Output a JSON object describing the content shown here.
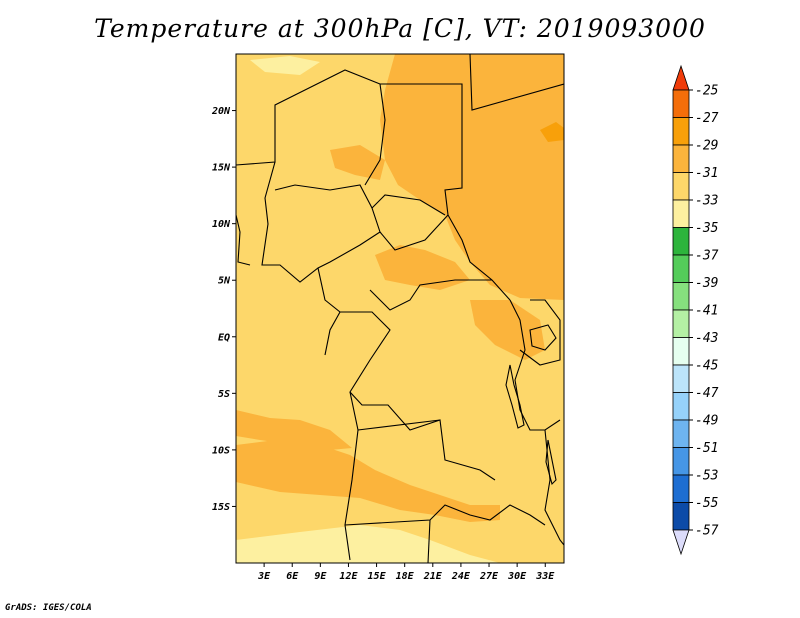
{
  "title": "Temperature at 300hPa [C], VT: 2019093000",
  "footer": "GrADS: IGES/COLA",
  "map": {
    "lon_range": [
      0,
      35
    ],
    "lat_range": [
      -20,
      25
    ],
    "lat_ticks": [
      {
        "label": "20N",
        "lat": 20
      },
      {
        "label": "15N",
        "lat": 15
      },
      {
        "label": "10N",
        "lat": 10
      },
      {
        "label": "5N",
        "lat": 5
      },
      {
        "label": "EQ",
        "lat": 0
      },
      {
        "label": "5S",
        "lat": -5
      },
      {
        "label": "10S",
        "lat": -10
      },
      {
        "label": "15S",
        "lat": -15
      }
    ],
    "lon_ticks": [
      {
        "label": "3E",
        "lon": 3
      },
      {
        "label": "6E",
        "lon": 6
      },
      {
        "label": "9E",
        "lon": 9
      },
      {
        "label": "12E",
        "lon": 12
      },
      {
        "label": "15E",
        "lon": 15
      },
      {
        "label": "18E",
        "lon": 18
      },
      {
        "label": "21E",
        "lon": 21
      },
      {
        "label": "24E",
        "lon": 24
      },
      {
        "label": "27E",
        "lon": 27
      },
      {
        "label": "30E",
        "lon": 30
      },
      {
        "label": "33E",
        "lon": 33
      }
    ]
  },
  "colorbar": {
    "labels": [
      "-25",
      "-27",
      "-29",
      "-31",
      "-33",
      "-35",
      "-37",
      "-39",
      "-41",
      "-43",
      "-45",
      "-47",
      "-49",
      "-51",
      "-53",
      "-55",
      "-57"
    ],
    "colors": [
      "#f03c0a",
      "#f46e0a",
      "#f8a00a",
      "#fbb43c",
      "#fdd76a",
      "#fdf0a0",
      "#2db43c",
      "#54cc5a",
      "#86e07e",
      "#b4f0a4",
      "#e6fff0",
      "#bce4fa",
      "#96d2fa",
      "#6eb4f0",
      "#4696e6",
      "#1e6ed2",
      "#0c4ba8",
      "#0a0a78",
      "#dcdcfa"
    ]
  }
}
